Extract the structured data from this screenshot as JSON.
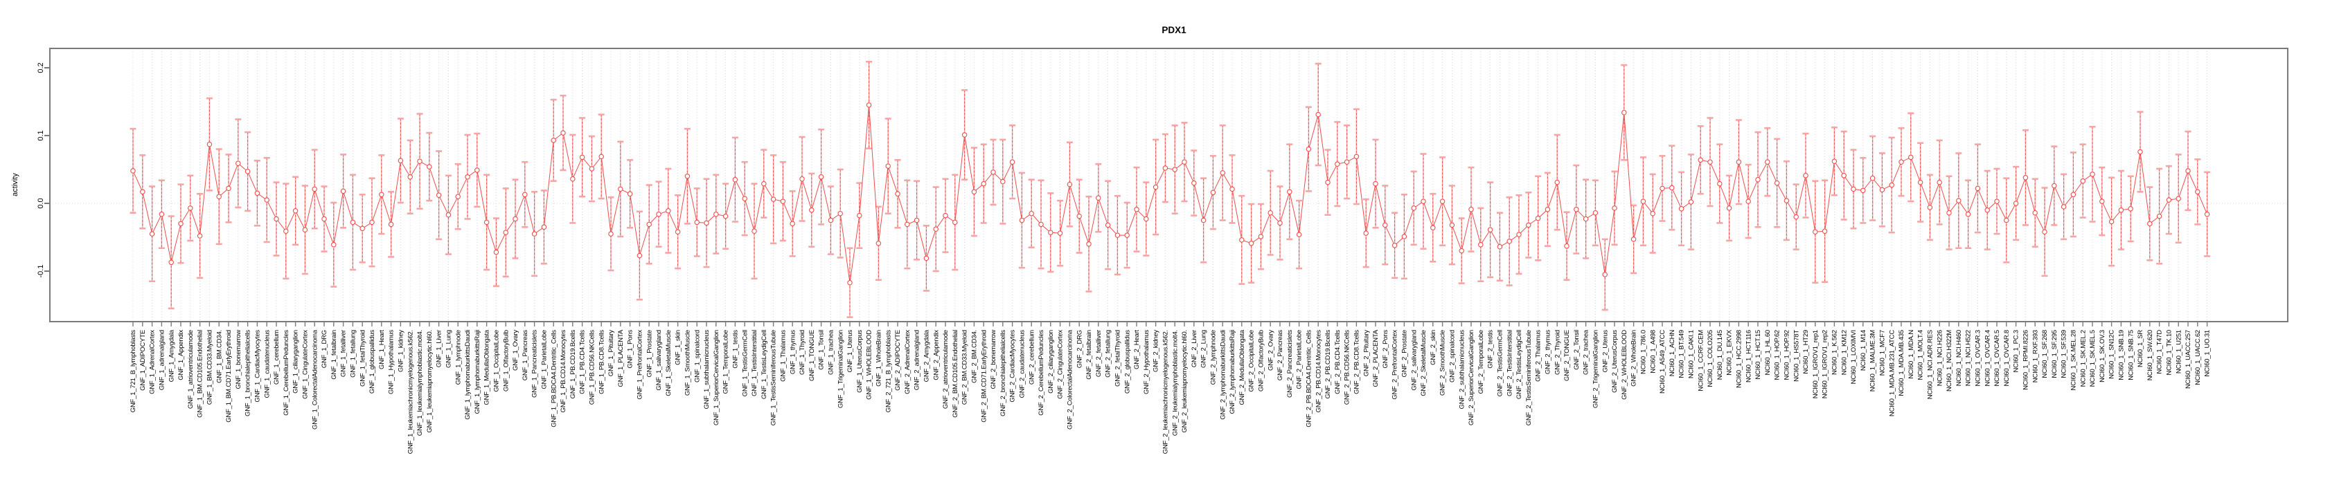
{
  "title": "PDX1",
  "colors": {
    "series_red": "#ee4b4b",
    "error_stem_red": "#ee5252",
    "error_cap_pink": "#f6a5a5",
    "gridline_gray": "#d7d7d7",
    "zero_line_gray": "#dcdcdc",
    "box_gray": "#7a7a7a",
    "text_black": "#000000",
    "background": "#ffffff"
  },
  "chart_data": {
    "type": "line",
    "title": "PDX1",
    "xlabel": "",
    "ylabel": "activity",
    "ylim": [
      -0.168,
      0.226
    ],
    "yticks": [
      0.2,
      0.1,
      0.0,
      -0.1
    ],
    "ytick_labels": [
      "0.2",
      "0.1",
      "0.0",
      "-0.1"
    ],
    "grid": "dotted vertical gridline at every category; dotted horizontal line at y=0",
    "legend": "none",
    "marker": "open-circle",
    "line_style": "thin solid red between points, dashed red error stems with pale pink caps",
    "categories": [
      "GNF_1_721_B_lymphoblasts",
      "GNF_1_ADIPOCYTE",
      "GNF_1_AdrenalCortex",
      "GNF_1_adrenalgland",
      "GNF_1_Amygdala",
      "GNF_1_Appendix",
      "GNF_1_atrioventricularnode",
      "GNF_1_BM.CD105.Endothelial",
      "GNF_1_BM.CD33.Myeloid",
      "GNF_1_BM.CD34.",
      "GNF_1_BM.CD71.EarlyErythroid",
      "GNF_1_bonemarrow",
      "GNF_1_bronchialepithelialcells",
      "GNF_1_CardiacMyocytes",
      "GNF_1_caudatenucleus",
      "GNF_1_cerebellum",
      "GNF_1_CerebellumPeduncles",
      "GNF_1_ciliaryganglion",
      "GNF_1_CingulateCortex",
      "GNF_1_ColorectalAdenocarcinoma",
      "GNF_1_DRG",
      "GNF_1_fetalbrain",
      "GNF_1_fetalliver",
      "GNF_1_fetallung",
      "GNF_1_fetalThyroid",
      "GNF_1_globuspallidus",
      "GNF_1_Heart",
      "GNF_1_Hypothalamus",
      "GNF_1_kidney",
      "GNF_1_leukemiachronicmyelogenous.k562.",
      "GNF_1_leukemialymphoblastic.molt4.",
      "GNF_1_leukemiapromyelocytic.hl60.",
      "GNF_1_Liver",
      "GNF_1_Lung",
      "GNF_1_lymphnode",
      "GNF_1_lymphomaburkittsDaudi",
      "GNF_1_lymphomaburkittsRaji",
      "GNF_1_MedullaOblongata",
      "GNF_1_OccipitalLobe",
      "GNF_1_OlfactoryBulb",
      "GNF_1_Ovary",
      "GNF_1_Pancreas",
      "GNF_1_Pancreaticislets",
      "GNF_1_ParietalLobe",
      "GNF_1_PB.BDCA4.Dentritic_Cells",
      "GNF_1_PB.CD14.Monocytes",
      "GNF_1_PB.CD19.Bcells",
      "GNF_1_PB.CD4.Tcells",
      "GNF_1_PB.CD56.NKCells",
      "GNF_1_PB.CD8.Tcells",
      "GNF_1_Pituitary",
      "GNF_1_PLACENTA",
      "GNF_1_Pons",
      "GNF_1_PrefrontalCortex",
      "GNF_1_Prostate",
      "GNF_1_salivarygland",
      "GNF_1_SkeletalMuscle",
      "GNF_1_skin",
      "GNF_1_SmoothMuscle",
      "GNF_1_spinalcord",
      "GNF_1_subthalamicnucleus",
      "GNF_1_SuperiorCervicalGanglion",
      "GNF_1_TemporalLobe",
      "GNF_1_testis",
      "GNF_1_TestisGermCell",
      "GNF_1_TestisInterstitial",
      "GNF_1_TestisLeydigCell",
      "GNF_1_TestisSeminiferousTubule",
      "GNF_1_Thalamus",
      "GNF_1_thymus",
      "GNF_1_Thyroid",
      "GNF_1_TONGUE",
      "GNF_1_Tonsil",
      "GNF_1_trachea",
      "GNF_1_TrigeminalGanglion",
      "GNF_1_Uterus",
      "GNF_1_UterusCorpus",
      "GNF_1_WHOLEBLOOD",
      "GNF_1_WholeBrain",
      "GNF_2_721_B_lymphoblasts",
      "GNF_2_ADIPOCYTE",
      "GNF_2_AdrenalCortex",
      "GNF_2_adrenalgland",
      "GNF_2_Amygdala",
      "GNF_2_Appendix",
      "GNF_2_atrioventricularnode",
      "GNF_2_BM.CD105.Endothelial",
      "GNF_2_BM.CD33.Myeloid",
      "GNF_2_BM.CD34.",
      "GNF_2_BM.CD71.EarlyErythroid",
      "GNF_2_bonemarrow",
      "GNF_2_bronchialepithelialcells",
      "GNF_2_CardiacMyocytes",
      "GNF_2_caudatenucleus",
      "GNF_2_cerebellum",
      "GNF_2_CerebellumPeduncles",
      "GNF_2_ciliaryganglion",
      "GNF_2_CingulateCortex",
      "GNF_2_ColorectalAdenocarcinoma",
      "GNF_2_DRG",
      "GNF_2_fetalbrain",
      "GNF_2_fetalliver",
      "GNF_2_fetallung",
      "GNF_2_fetalThyroid",
      "GNF_2_globuspallidus",
      "GNF_2_Heart",
      "GNF_2_Hypothalamus",
      "GNF_2_kidney",
      "GNF_2_leukemiachronicmyelogenous.k562.",
      "GNF_2_leukemialymphoblastic.molt4.",
      "GNF_2_leukemiapromyelocytic.hl60.",
      "GNF_2_Liver",
      "GNF_2_Lung",
      "GNF_2_lymphnode",
      "GNF_2_lymphomaburkittsDaudi",
      "GNF_2_lymphomaburkittsRaji",
      "GNF_2_MedullaOblongata",
      "GNF_2_OccipitalLobe",
      "GNF_2_OlfactoryBulb",
      "GNF_2_Ovary",
      "GNF_2_Pancreas",
      "GNF_2_Pancreaticislets",
      "GNF_2_ParietalLobe",
      "GNF_2_PB.BDCA4.Dentritic_Cells",
      "GNF_2_PB.CD14.Monocytes",
      "GNF_2_PB.CD19.Bcells",
      "GNF_2_PB.CD4.Tcells",
      "GNF_2_PB.CD56.NKCells",
      "GNF_2_PB.CD8.Tcells",
      "GNF_2_Pituitary",
      "GNF_2_PLACENTA",
      "GNF_2_Pons",
      "GNF_2_PrefrontalCortex",
      "GNF_2_Prostate",
      "GNF_2_salivarygland",
      "GNF_2_SkeletalMuscle",
      "GNF_2_skin",
      "GNF_2_SmoothMuscle",
      "GNF_2_spinalcord",
      "GNF_2_subthalamicnucleus",
      "GNF_2_SuperiorCervicalGanglion",
      "GNF_2_TemporalLobe",
      "GNF_2_testis",
      "GNF_2_TestisGermCell",
      "GNF_2_TestisInterstitial",
      "GNF_2_TestisLeydigCell",
      "GNF_2_TestisSeminiferousTubule",
      "GNF_2_Thalamus",
      "GNF_2_thymus",
      "GNF_2_Thyroid",
      "GNF_2_TONGUE",
      "GNF_2_Tonsil",
      "GNF_2_trachea",
      "GNF_2_TrigeminalGanglion",
      "GNF_2_Uterus",
      "GNF_2_UterusCorpus",
      "GNF_2_WHOLEBLOOD",
      "GNF_2_WholeBrain",
      "NCI60_1_786.0",
      "NCI60_1_A498",
      "NCI60_1_A549_ATCC",
      "NCI60_1_ACHN",
      "NCI60_1_BT.549",
      "NCI60_1_CAKI.1",
      "NCI60_1_CCRF.CEM",
      "NCI60_1_COLO205",
      "NCI60_1_DU.145",
      "NCI60_1_EKVX",
      "NCI60_1_HCC.2998",
      "NCI60_1_HCT.116",
      "NCI60_1_HCT.15",
      "NCI60_1_HL.60",
      "NCI60_1_HOP.62",
      "NCI60_1_HOP.92",
      "NCI60_1_HS578T",
      "NCI60_1_HT29",
      "NCI60_1_IGROV1_rep1",
      "NCI60_1_IGROV1_rep2",
      "NCI60_1_K.562",
      "NCI60_1_KM12",
      "NCI60_1_LOXIMVI",
      "NCI60_1_M14",
      "NCI60_1_MALME.3M",
      "NCI60_1_MCF7",
      "NCI60_1_MDA.MB.231_ATCC",
      "NCI60_1_MDA.MB.435",
      "NCI60_1_MDA.N",
      "NCI60_1_MOLT.4",
      "NCI60_1_NCI.ADR.RES",
      "NCI60_1_NCI.H226",
      "NCI60_1_NCI.H322M",
      "NCI60_1_NCI.H460",
      "NCI60_1_NCI.H522",
      "NCI60_1_OVCAR.3",
      "NCI60_1_OVCAR.4",
      "NCI60_1_OVCAR.5",
      "NCI60_1_OVCAR.8",
      "NCI60_1_PC.3",
      "NCI60_1_RPMI.8226",
      "NCI60_1_RXF.393",
      "NCI60_1_SF.268",
      "NCI60_1_SF.295",
      "NCI60_1_SF.539",
      "NCI60_1_SK.MEL.28",
      "NCI60_1_SK.MEL.2",
      "NCI60_1_SK.MEL.5",
      "NCI60_1_SK.OV.3",
      "NCI60_1_SN12C",
      "NCI60_1_SNB.19",
      "NCI60_1_SNB.75",
      "NCI60_1_SR",
      "NCI60_1_SW.620",
      "NCI60_1_T47D",
      "NCI60_1_TK.10",
      "NCI60_1_U251",
      "NCI60_1_UACC.257",
      "NCI60_1_UACC.62",
      "NCI60_1_UO.31"
    ],
    "values": [
      0.048,
      0.017,
      -0.045,
      -0.016,
      -0.087,
      -0.03,
      -0.007,
      -0.048,
      0.087,
      0.01,
      0.022,
      0.059,
      0.047,
      0.015,
      0.005,
      -0.023,
      -0.041,
      -0.011,
      -0.039,
      0.021,
      -0.023,
      -0.061,
      0.018,
      -0.028,
      -0.037,
      -0.028,
      0.013,
      -0.031,
      0.063,
      0.039,
      0.062,
      0.054,
      0.012,
      -0.017,
      0.01,
      0.039,
      0.049,
      -0.028,
      -0.072,
      -0.043,
      -0.023,
      0.013,
      -0.045,
      -0.035,
      0.093,
      0.104,
      0.036,
      0.068,
      0.051,
      0.069,
      -0.045,
      0.021,
      0.014,
      -0.077,
      -0.031,
      -0.016,
      -0.011,
      -0.042,
      0.04,
      -0.028,
      -0.029,
      -0.016,
      -0.019,
      0.035,
      0.007,
      -0.041,
      0.029,
      0.006,
      0.003,
      -0.03,
      0.036,
      -0.01,
      0.039,
      -0.025,
      -0.015,
      -0.117,
      -0.018,
      0.145,
      -0.059,
      0.055,
      0.014,
      -0.031,
      -0.025,
      -0.081,
      -0.038,
      -0.018,
      -0.028,
      0.101,
      0.017,
      0.029,
      0.046,
      0.032,
      0.061,
      -0.025,
      -0.015,
      -0.031,
      -0.043,
      -0.044,
      0.028,
      -0.019,
      -0.06,
      0.008,
      -0.032,
      -0.047,
      -0.047,
      -0.009,
      -0.023,
      0.024,
      0.052,
      0.05,
      0.061,
      0.03,
      -0.025,
      0.016,
      0.045,
      0.021,
      -0.054,
      -0.059,
      -0.049,
      -0.014,
      -0.029,
      0.017,
      -0.046,
      0.08,
      0.131,
      0.031,
      0.058,
      0.061,
      0.069,
      -0.044,
      0.029,
      -0.032,
      -0.062,
      -0.049,
      -0.007,
      0.003,
      -0.036,
      0.003,
      -0.032,
      -0.07,
      -0.009,
      -0.061,
      -0.039,
      -0.064,
      -0.056,
      -0.046,
      -0.032,
      -0.022,
      -0.009,
      0.031,
      -0.063,
      -0.009,
      -0.023,
      -0.014,
      -0.105,
      -0.007,
      0.134,
      -0.053,
      0.003,
      -0.015,
      0.022,
      0.023,
      -0.008,
      0.002,
      0.064,
      0.061,
      0.029,
      -0.007,
      0.061,
      0.003,
      0.035,
      0.061,
      0.03,
      0.004,
      -0.02,
      0.041,
      -0.042,
      -0.041,
      0.062,
      0.041,
      0.021,
      0.019,
      0.037,
      0.02,
      0.027,
      0.061,
      0.068,
      0.031,
      -0.006,
      0.031,
      -0.014,
      0.004,
      -0.016,
      0.022,
      -0.01,
      0.003,
      -0.025,
      0.0,
      0.038,
      -0.014,
      -0.042,
      0.026,
      -0.005,
      0.013,
      0.033,
      0.043,
      0.003,
      -0.027,
      -0.01,
      -0.008,
      0.076,
      -0.03,
      -0.019,
      0.005,
      0.007,
      0.048,
      0.017,
      -0.016
    ],
    "error_half": [
      0.062,
      0.054,
      0.07,
      0.05,
      0.068,
      0.058,
      0.048,
      0.062,
      0.068,
      0.07,
      0.05,
      0.065,
      0.058,
      0.048,
      0.062,
      0.054,
      0.07,
      0.05,
      0.065,
      0.058,
      0.048,
      0.062,
      0.054,
      0.07,
      0.05,
      0.065,
      0.058,
      0.048,
      0.062,
      0.054,
      0.07,
      0.05,
      0.065,
      0.058,
      0.048,
      0.062,
      0.054,
      0.07,
      0.05,
      0.065,
      0.058,
      0.048,
      0.062,
      0.054,
      0.06,
      0.055,
      0.065,
      0.058,
      0.048,
      0.062,
      0.054,
      0.07,
      0.05,
      0.065,
      0.058,
      0.048,
      0.062,
      0.054,
      0.07,
      0.05,
      0.065,
      0.058,
      0.048,
      0.062,
      0.054,
      0.07,
      0.05,
      0.065,
      0.058,
      0.048,
      0.062,
      0.054,
      0.07,
      0.05,
      0.065,
      0.051,
      0.048,
      0.064,
      0.054,
      0.07,
      0.05,
      0.065,
      0.058,
      0.048,
      0.062,
      0.054,
      0.07,
      0.066,
      0.065,
      0.058,
      0.048,
      0.062,
      0.054,
      0.07,
      0.05,
      0.065,
      0.058,
      0.048,
      0.062,
      0.054,
      0.07,
      0.05,
      0.065,
      0.058,
      0.048,
      0.062,
      0.054,
      0.07,
      0.05,
      0.065,
      0.058,
      0.048,
      0.062,
      0.054,
      0.07,
      0.05,
      0.065,
      0.058,
      0.048,
      0.062,
      0.054,
      0.07,
      0.05,
      0.062,
      0.075,
      0.048,
      0.062,
      0.054,
      0.07,
      0.05,
      0.065,
      0.058,
      0.048,
      0.062,
      0.054,
      0.07,
      0.05,
      0.065,
      0.058,
      0.048,
      0.062,
      0.054,
      0.07,
      0.05,
      0.065,
      0.058,
      0.048,
      0.062,
      0.054,
      0.07,
      0.05,
      0.065,
      0.058,
      0.048,
      0.052,
      0.054,
      0.07,
      0.05,
      0.065,
      0.058,
      0.048,
      0.062,
      0.054,
      0.07,
      0.05,
      0.065,
      0.058,
      0.048,
      0.062,
      0.054,
      0.07,
      0.05,
      0.065,
      0.058,
      0.048,
      0.062,
      0.075,
      0.075,
      0.05,
      0.065,
      0.058,
      0.048,
      0.062,
      0.054,
      0.07,
      0.05,
      0.065,
      0.058,
      0.048,
      0.062,
      0.054,
      0.07,
      0.05,
      0.065,
      0.058,
      0.048,
      0.062,
      0.054,
      0.07,
      0.05,
      0.065,
      0.058,
      0.048,
      0.062,
      0.054,
      0.07,
      0.05,
      0.065,
      0.058,
      0.048,
      0.059,
      0.054,
      0.07,
      0.05,
      0.065,
      0.058,
      0.048,
      0.062
    ]
  }
}
